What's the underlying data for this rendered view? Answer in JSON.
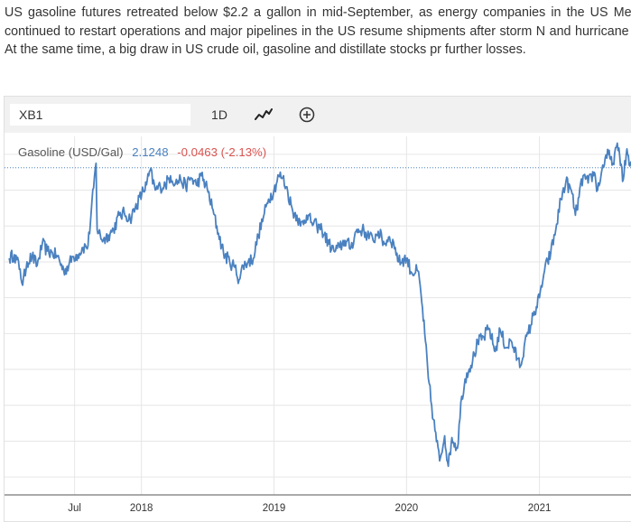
{
  "article": {
    "text": "US gasoline futures retreated below $2.2 a gallon in mid-September, as energy companies in the US Mexico continued to restart operations and major pipelines in the US resume shipments after storm N and hurricane Ida. At the same time, a big draw in US crude oil, gasoline and distillate stocks pr further losses."
  },
  "toolbar": {
    "symbol_value": "XB1",
    "range_label": "1D",
    "chart_type_icon": "line-chart-icon",
    "add_icon": "plus-circle-icon"
  },
  "legend": {
    "series_name": "Gasoline (USD/Gal)",
    "last_value": "2.1248",
    "change": "-0.0463 (-2.13%)"
  },
  "colors": {
    "line": "#4a81c0",
    "change_negative": "#d9534f",
    "toolbar_bg": "#f1f1f1",
    "grid": "#e6e6e6"
  },
  "chart_data": {
    "type": "line",
    "series": [
      {
        "name": "Gasoline (USD/Gal)",
        "points": [
          [
            "2017-01-02",
            1.62
          ],
          [
            "2017-01-16",
            1.64
          ],
          [
            "2017-02-01",
            1.56
          ],
          [
            "2017-02-08",
            1.47
          ],
          [
            "2017-02-20",
            1.6
          ],
          [
            "2017-03-06",
            1.63
          ],
          [
            "2017-03-20",
            1.58
          ],
          [
            "2017-04-03",
            1.7
          ],
          [
            "2017-04-17",
            1.66
          ],
          [
            "2017-05-01",
            1.65
          ],
          [
            "2017-05-15",
            1.63
          ],
          [
            "2017-06-01",
            1.55
          ],
          [
            "2017-06-15",
            1.58
          ],
          [
            "2017-06-26",
            1.63
          ],
          [
            "2017-07-10",
            1.64
          ],
          [
            "2017-07-24",
            1.68
          ],
          [
            "2017-08-07",
            1.69
          ],
          [
            "2017-08-29",
            2.15
          ],
          [
            "2017-09-01",
            1.78
          ],
          [
            "2017-09-18",
            1.72
          ],
          [
            "2017-10-02",
            1.75
          ],
          [
            "2017-10-16",
            1.78
          ],
          [
            "2017-11-01",
            1.86
          ],
          [
            "2017-11-15",
            1.87
          ],
          [
            "2017-12-01",
            1.84
          ],
          [
            "2017-12-15",
            1.9
          ],
          [
            "2018-01-02",
            1.98
          ],
          [
            "2018-01-15",
            2.03
          ],
          [
            "2018-01-25",
            2.11
          ],
          [
            "2018-02-08",
            2.0
          ],
          [
            "2018-02-22",
            2.02
          ],
          [
            "2018-03-08",
            2.03
          ],
          [
            "2018-03-22",
            2.08
          ],
          [
            "2018-04-05",
            2.04
          ],
          [
            "2018-04-19",
            2.06
          ],
          [
            "2018-05-03",
            2.02
          ],
          [
            "2018-05-17",
            2.07
          ],
          [
            "2018-06-01",
            2.03
          ],
          [
            "2018-06-15",
            2.08
          ],
          [
            "2018-07-01",
            2.01
          ],
          [
            "2018-07-15",
            1.9
          ],
          [
            "2018-08-01",
            1.76
          ],
          [
            "2018-08-15",
            1.65
          ],
          [
            "2018-09-01",
            1.6
          ],
          [
            "2018-09-15",
            1.57
          ],
          [
            "2018-09-27",
            1.5
          ],
          [
            "2018-10-08",
            1.58
          ],
          [
            "2018-10-22",
            1.6
          ],
          [
            "2018-11-05",
            1.62
          ],
          [
            "2018-11-19",
            1.75
          ],
          [
            "2018-12-03",
            1.85
          ],
          [
            "2018-12-17",
            1.95
          ],
          [
            "2019-01-01",
            2.0
          ],
          [
            "2019-01-14",
            2.08
          ],
          [
            "2019-01-25",
            2.07
          ],
          [
            "2019-02-08",
            1.99
          ],
          [
            "2019-02-22",
            1.88
          ],
          [
            "2019-03-05",
            1.86
          ],
          [
            "2019-03-15",
            1.8
          ],
          [
            "2019-04-01",
            1.86
          ],
          [
            "2019-04-15",
            1.82
          ],
          [
            "2019-04-29",
            1.8
          ],
          [
            "2019-05-13",
            1.78
          ],
          [
            "2019-06-01",
            1.7
          ],
          [
            "2019-06-15",
            1.66
          ],
          [
            "2019-07-01",
            1.68
          ],
          [
            "2019-07-15",
            1.72
          ],
          [
            "2019-08-01",
            1.68
          ],
          [
            "2019-08-15",
            1.77
          ],
          [
            "2019-09-01",
            1.78
          ],
          [
            "2019-09-15",
            1.75
          ],
          [
            "2019-10-01",
            1.72
          ],
          [
            "2019-10-15",
            1.77
          ],
          [
            "2019-11-01",
            1.7
          ],
          [
            "2019-11-15",
            1.74
          ],
          [
            "2019-12-01",
            1.68
          ],
          [
            "2019-12-10",
            1.6
          ],
          [
            "2020-01-01",
            1.62
          ],
          [
            "2020-01-15",
            1.54
          ],
          [
            "2020-02-01",
            1.55
          ],
          [
            "2020-02-10",
            1.42
          ],
          [
            "2020-02-20",
            1.2
          ],
          [
            "2020-03-01",
            0.95
          ],
          [
            "2020-03-15",
            0.72
          ],
          [
            "2020-04-01",
            0.49
          ],
          [
            "2020-04-15",
            0.63
          ],
          [
            "2020-04-25",
            0.46
          ],
          [
            "2020-05-05",
            0.62
          ],
          [
            "2020-05-20",
            0.56
          ],
          [
            "2020-06-01",
            0.85
          ],
          [
            "2020-06-15",
            0.98
          ],
          [
            "2020-07-01",
            1.05
          ],
          [
            "2020-07-15",
            1.15
          ],
          [
            "2020-08-01",
            1.18
          ],
          [
            "2020-08-15",
            1.23
          ],
          [
            "2020-09-01",
            1.1
          ],
          [
            "2020-09-15",
            1.22
          ],
          [
            "2020-10-01",
            1.12
          ],
          [
            "2020-10-15",
            1.16
          ],
          [
            "2020-11-01",
            1.06
          ],
          [
            "2020-11-10",
            1.02
          ],
          [
            "2020-11-20",
            1.13
          ],
          [
            "2020-12-01",
            1.2
          ],
          [
            "2020-12-15",
            1.3
          ],
          [
            "2021-01-01",
            1.4
          ],
          [
            "2021-01-15",
            1.55
          ],
          [
            "2021-02-01",
            1.65
          ],
          [
            "2021-02-15",
            1.78
          ],
          [
            "2021-03-01",
            1.95
          ],
          [
            "2021-03-15",
            2.05
          ],
          [
            "2021-04-01",
            1.98
          ],
          [
            "2021-04-10",
            1.86
          ],
          [
            "2021-04-20",
            1.96
          ],
          [
            "2021-05-01",
            2.08
          ],
          [
            "2021-05-15",
            2.04
          ],
          [
            "2021-06-01",
            2.1
          ],
          [
            "2021-06-10",
            2.0
          ],
          [
            "2021-06-20",
            2.09
          ],
          [
            "2021-07-01",
            2.18
          ],
          [
            "2021-07-10",
            2.2
          ],
          [
            "2021-07-20",
            2.14
          ],
          [
            "2021-08-01",
            2.24
          ],
          [
            "2021-08-10",
            2.19
          ],
          [
            "2021-08-20",
            2.06
          ],
          [
            "2021-08-30",
            2.23
          ],
          [
            "2021-09-05",
            2.14
          ],
          [
            "2021-09-15",
            2.1248
          ]
        ]
      }
    ],
    "reference_line": 2.1248,
    "x_ticks": [
      {
        "date": "2017-07-01",
        "label": "Jul"
      },
      {
        "date": "2018-01-01",
        "label": "2018"
      },
      {
        "date": "2019-01-01",
        "label": "2019"
      },
      {
        "date": "2020-01-01",
        "label": "2020"
      },
      {
        "date": "2021-01-01",
        "label": "2021"
      }
    ],
    "y_grid": [
      0.4,
      0.6,
      0.8,
      1.0,
      1.2,
      1.4,
      1.6,
      1.8,
      2.0,
      2.2
    ],
    "ylim": [
      0.3,
      2.3
    ],
    "xlim": [
      "2016-12-20",
      "2021-09-25"
    ],
    "grid": true
  }
}
